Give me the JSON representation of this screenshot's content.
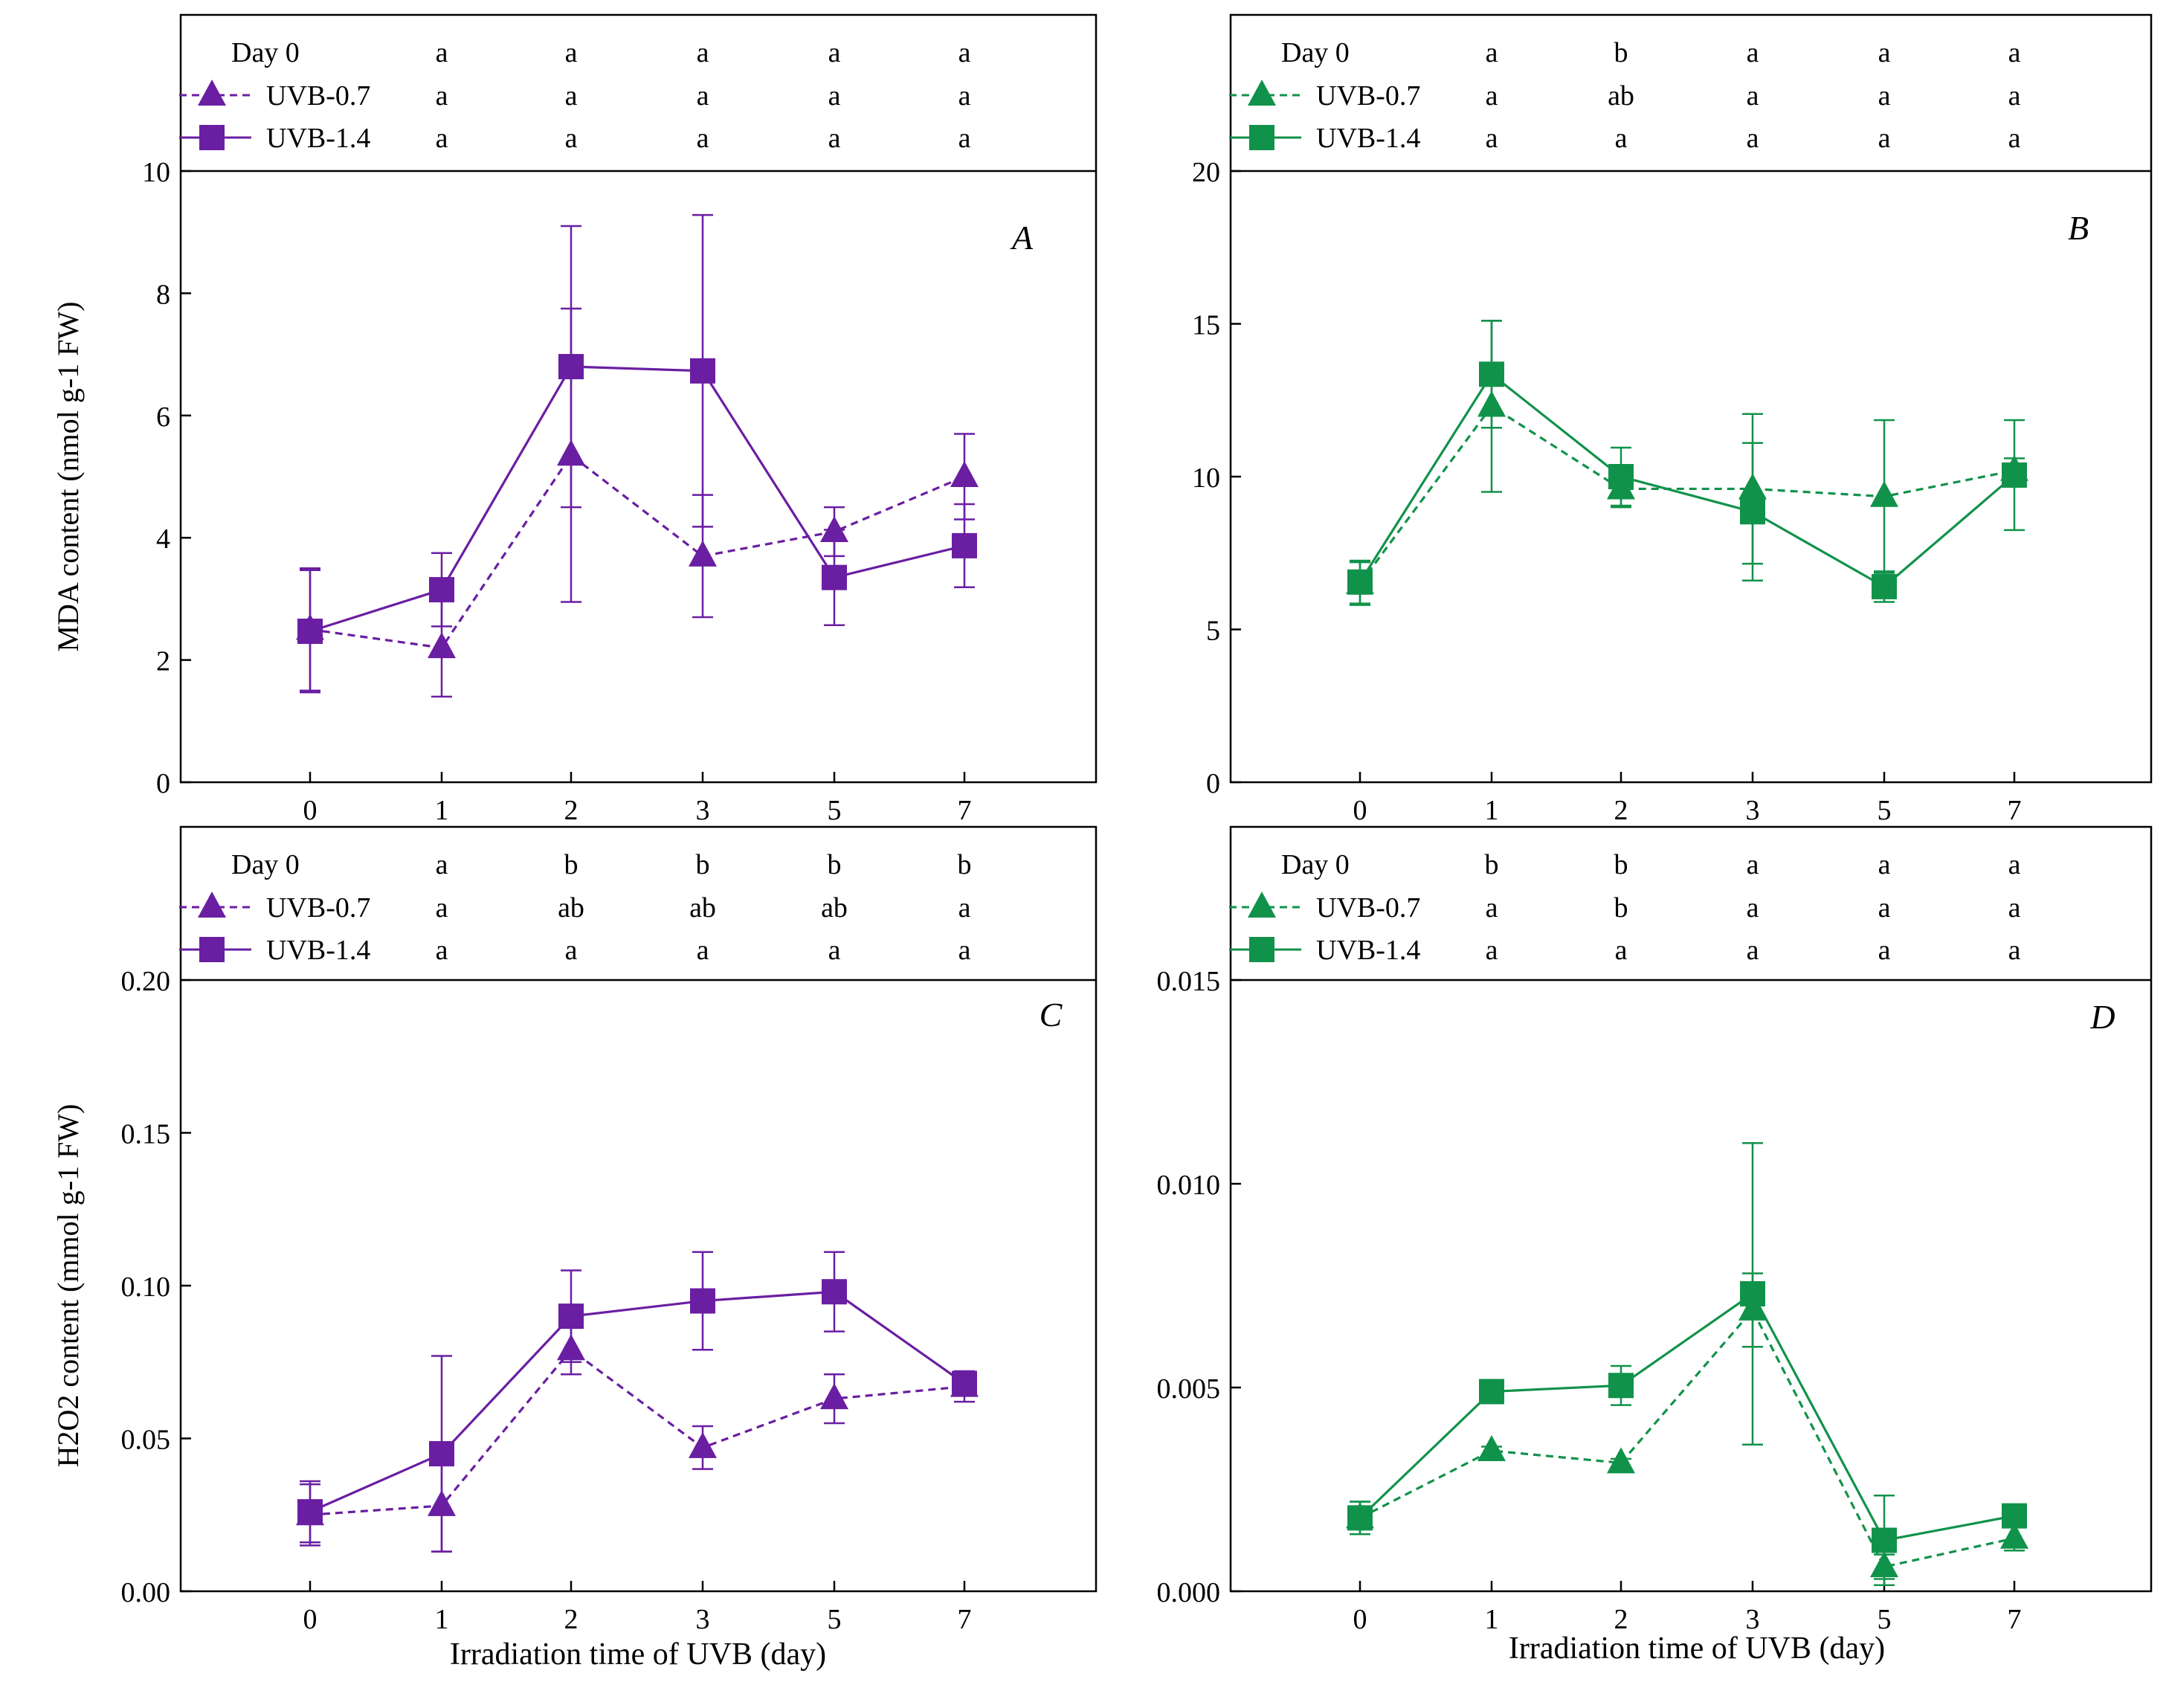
{
  "figure": {
    "xlabel": "Irradiation time of UVB (day)",
    "legend_labels": {
      "day0": "Day 0",
      "low": "UVB-0.7",
      "high": "UVB-1.4"
    },
    "colors": {
      "purple": "#6a1ea2",
      "green": "#11924a",
      "axis": "#000000"
    }
  },
  "chart_data": [
    {
      "type": "line",
      "panel": "A",
      "ylabel": "MDA content (nmol g-1 FW)",
      "ylim": [
        0,
        10
      ],
      "yticks": [
        "0",
        "2",
        "4",
        "6",
        "8",
        "10"
      ],
      "categories": [
        "0",
        "1",
        "2",
        "3",
        "5",
        "7"
      ],
      "letters": {
        "day0": [
          "a",
          "a",
          "a",
          "a",
          "a"
        ],
        "low": [
          "a",
          "a",
          "a",
          "a",
          "a"
        ],
        "high": [
          "a",
          "a",
          "a",
          "a",
          "a"
        ]
      },
      "series": [
        {
          "name": "UVB-0.7",
          "style": "dashed",
          "marker": "triangle",
          "values": [
            2.5,
            2.2,
            5.35,
            3.7,
            4.1,
            5.0
          ],
          "errors": [
            1.0,
            0.8,
            2.4,
            1.0,
            0.4,
            0.7
          ]
        },
        {
          "name": "UVB-1.4",
          "style": "solid",
          "marker": "square",
          "values": [
            2.47,
            3.15,
            6.8,
            6.73,
            3.35,
            3.87
          ],
          "errors": [
            1.0,
            0.6,
            2.3,
            2.55,
            0.78,
            0.68
          ]
        }
      ]
    },
    {
      "type": "line",
      "panel": "B",
      "ylabel": "",
      "ylim": [
        0,
        20
      ],
      "yticks": [
        "0",
        "5",
        "10",
        "15",
        "20"
      ],
      "categories": [
        "0",
        "1",
        "2",
        "3",
        "5",
        "7"
      ],
      "letters": {
        "day0": [
          "a",
          "b",
          "a",
          "a",
          "a"
        ],
        "low": [
          "a",
          "ab",
          "a",
          "a",
          "a"
        ],
        "high": [
          "a",
          "a",
          "a",
          "a",
          "a"
        ]
      },
      "series": [
        {
          "name": "UVB-0.7",
          "style": "dashed",
          "marker": "triangle",
          "values": [
            6.5,
            12.3,
            9.6,
            9.6,
            9.35,
            10.2
          ],
          "errors": [
            0.7,
            2.8,
            0.6,
            2.45,
            2.5,
            0.4
          ]
        },
        {
          "name": "UVB-1.4",
          "style": "solid",
          "marker": "square",
          "values": [
            6.55,
            13.35,
            10.0,
            8.85,
            6.4,
            10.05
          ],
          "errors": [
            0.7,
            1.75,
            0.95,
            2.25,
            0.5,
            1.8
          ]
        }
      ]
    },
    {
      "type": "line",
      "panel": "C",
      "ylabel": "H2O2 content (mmol g-1 FW)",
      "ylim": [
        0,
        0.2
      ],
      "yticks": [
        "0.00",
        "0.05",
        "0.10",
        "0.15",
        "0.20"
      ],
      "categories": [
        "0",
        "1",
        "2",
        "3",
        "5",
        "7"
      ],
      "letters": {
        "day0": [
          "a",
          "b",
          "b",
          "b",
          "b"
        ],
        "low": [
          "a",
          "ab",
          "ab",
          "ab",
          "a"
        ],
        "high": [
          "a",
          "a",
          "a",
          "a",
          "a"
        ]
      },
      "series": [
        {
          "name": "UVB-0.7",
          "style": "dashed",
          "marker": "triangle",
          "values": [
            0.025,
            0.028,
            0.079,
            0.047,
            0.063,
            0.067
          ],
          "errors": [
            0.01,
            0.015,
            0.008,
            0.007,
            0.008,
            0.005
          ]
        },
        {
          "name": "UVB-1.4",
          "style": "solid",
          "marker": "square",
          "values": [
            0.026,
            0.045,
            0.09,
            0.095,
            0.098,
            0.068
          ],
          "errors": [
            0.01,
            0.032,
            0.015,
            0.016,
            0.013,
            0.004
          ]
        }
      ]
    },
    {
      "type": "line",
      "panel": "D",
      "ylabel": "",
      "ylim": [
        0,
        0.015
      ],
      "yticks": [
        "0.000",
        "0.005",
        "0.010",
        "0.015"
      ],
      "categories": [
        "0",
        "1",
        "2",
        "3",
        "5",
        "7"
      ],
      "letters": {
        "day0": [
          "b",
          "b",
          "a",
          "a",
          "a"
        ],
        "low": [
          "a",
          "b",
          "a",
          "a",
          "a"
        ],
        "high": [
          "a",
          "a",
          "a",
          "a",
          "a"
        ]
      },
      "series": [
        {
          "name": "UVB-0.7",
          "style": "dashed",
          "marker": "triangle",
          "values": [
            0.0018,
            0.00345,
            0.00315,
            0.0069,
            0.0006,
            0.0013
          ],
          "errors": [
            0.0004,
            0.0001,
            0.0001,
            0.0009,
            0.0003,
            0.0003
          ]
        },
        {
          "name": "UVB-1.4",
          "style": "solid",
          "marker": "square",
          "values": [
            0.0018,
            0.0049,
            0.00505,
            0.0073,
            0.00125,
            0.00185
          ],
          "errors": [
            0.0004,
            0.0002,
            0.00048,
            0.0037,
            0.0011,
            0.0002
          ]
        }
      ]
    }
  ]
}
